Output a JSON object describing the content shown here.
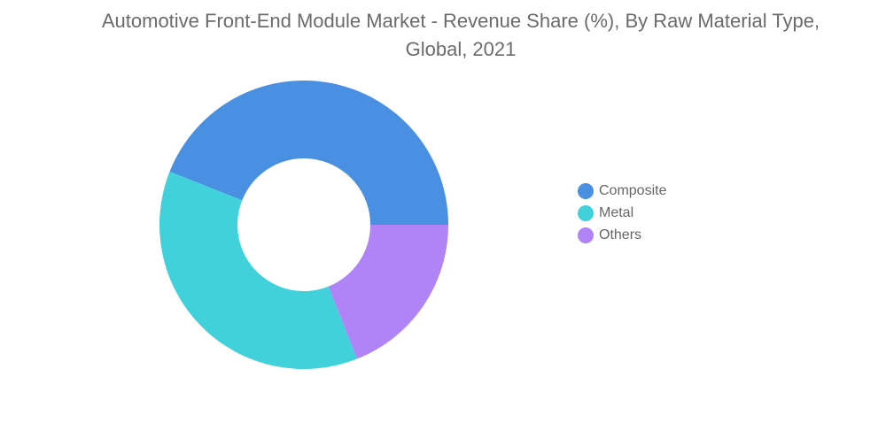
{
  "chart_data": {
    "type": "pie",
    "title": "Automotive Front-End Module Market - Revenue Share (%), By Raw Material Type, Global, 2021",
    "categories": [
      "Composite",
      "Metal",
      "Others"
    ],
    "values": [
      44,
      37,
      19
    ],
    "colors": [
      "#4a90e2",
      "#40d1da",
      "#b084f7"
    ],
    "donut": true,
    "legend_position": "right"
  }
}
